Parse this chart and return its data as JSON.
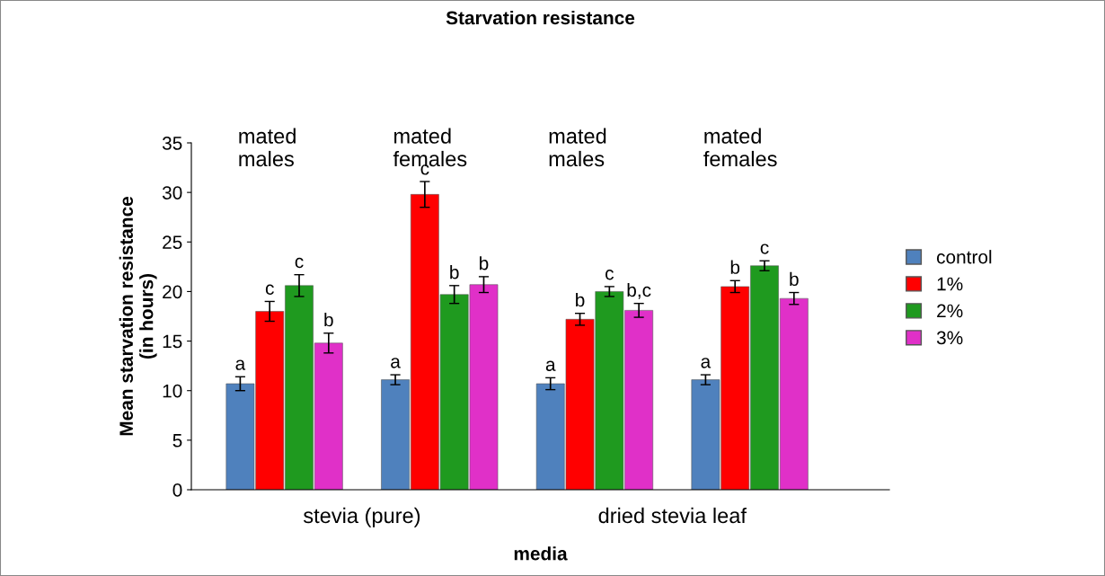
{
  "chart_data": {
    "type": "bar",
    "title": "Starvation resistance",
    "xlabel": "media",
    "ylabel": "Mean starvation resistance\n(in hours)",
    "categories": [
      null,
      null,
      null,
      null
    ],
    "series": [
      {
        "name": "control",
        "color": "#4f81bd",
        "values": [
          10.7,
          11.1,
          10.7,
          11.1
        ],
        "errors": [
          0.7,
          0.5,
          0.6,
          0.5
        ],
        "value_labels": [
          "a",
          "a",
          "a",
          "a"
        ]
      },
      {
        "name": "1%",
        "color": "#ff0000",
        "values": [
          18.0,
          29.8,
          17.2,
          20.5
        ],
        "errors": [
          1.0,
          1.3,
          0.6,
          0.6
        ],
        "value_labels": [
          "c",
          "c",
          "b",
          "b"
        ]
      },
      {
        "name": "2%",
        "color": "#1f9a1f",
        "values": [
          20.6,
          19.7,
          20.0,
          22.6
        ],
        "errors": [
          1.1,
          0.9,
          0.5,
          0.5
        ],
        "value_labels": [
          "c",
          "b",
          "c",
          "c"
        ]
      },
      {
        "name": "3%",
        "color": "#e030c8",
        "values": [
          14.8,
          20.7,
          18.1,
          19.3
        ],
        "errors": [
          1.0,
          0.8,
          0.7,
          0.6
        ],
        "value_labels": [
          "b",
          "b",
          "b,c",
          "b"
        ]
      }
    ],
    "annotations": [
      "mated\nmales",
      "mated\nfemales",
      "mated\nmales",
      "mated\nfemales",
      "stevia (pure)",
      "dried stevia leaf"
    ],
    "ylim": [
      0,
      35
    ],
    "yticks": [
      0,
      5,
      10,
      15,
      20,
      25,
      30,
      35
    ],
    "grid": false,
    "legend": "right"
  }
}
